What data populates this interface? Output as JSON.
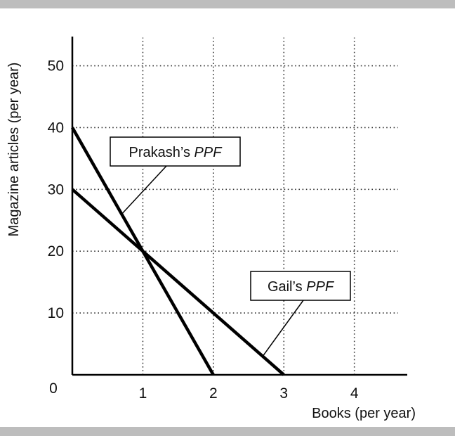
{
  "chart_data": {
    "type": "line",
    "xlabel": "Books (per year)",
    "ylabel": "Magazine articles (per year)",
    "xlim": [
      0,
      4.75
    ],
    "ylim": [
      0,
      57
    ],
    "x_ticks": [
      1,
      2,
      3,
      4
    ],
    "y_ticks": [
      10,
      20,
      30,
      40,
      50
    ],
    "origin_label": "0",
    "grid": true,
    "grid_style": "dotted",
    "series": [
      {
        "name": "Prakash's PPF",
        "x": [
          0,
          2
        ],
        "y": [
          40,
          0
        ],
        "color": "#000000"
      },
      {
        "name": "Gail's PPF",
        "x": [
          0,
          3
        ],
        "y": [
          30,
          0
        ],
        "color": "#000000"
      }
    ],
    "annotations": [
      {
        "name_plain": "Prakash’s ",
        "name_italic": "PPF",
        "target_series": 0,
        "target_x": 0.7
      },
      {
        "name_plain": "Gail’s ",
        "name_italic": "PPF",
        "target_series": 1,
        "target_x": 2.7
      }
    ]
  }
}
